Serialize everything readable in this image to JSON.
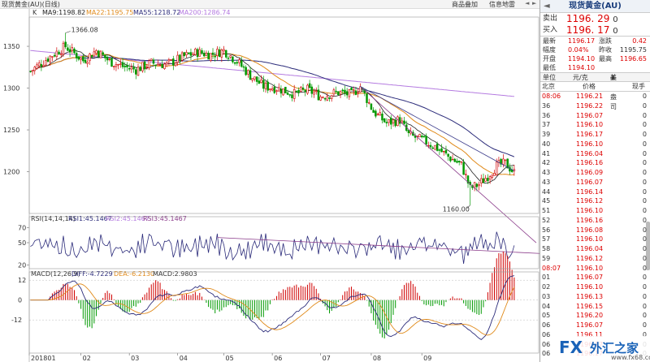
{
  "window": {
    "title": "现货黄金(AU)(日线)",
    "buttons": [
      "商品叠加",
      "信息地雷"
    ],
    "scroll_left": "◄",
    "scroll_right": "►"
  },
  "chart_data": [
    {
      "type": "candlestick",
      "panel": "price",
      "info_label": "K",
      "ma_legend": [
        {
          "name": "MA9:1198.82",
          "color": "#222222"
        },
        {
          "name": "MA22:1195.75",
          "color": "#e08a1a"
        },
        {
          "name": "MA55:1218.72",
          "color": "#2b2b7a"
        },
        {
          "name": "MA200:1286.74",
          "color": "#b47ae0"
        }
      ],
      "ylim": [
        1150,
        1385
      ],
      "yticks": [
        "1350",
        "1300",
        "1250",
        "1200"
      ],
      "ytick_values": [
        1350,
        1300,
        1250,
        1200
      ],
      "xticks": [
        "201801",
        "02",
        "03",
        "04",
        "05",
        "06",
        "07",
        "08",
        "09"
      ],
      "annotations": [
        {
          "text": "1366.08",
          "x_index": 16,
          "value": 1366.08
        },
        {
          "text": "1160.00",
          "x_index": 200,
          "value": 1160.0
        }
      ],
      "up_color": "#d00000",
      "down_color": "#009900",
      "anchors": [
        [
          0,
          1320
        ],
        [
          8,
          1336
        ],
        [
          16,
          1350
        ],
        [
          24,
          1333
        ],
        [
          30,
          1345
        ],
        [
          36,
          1332
        ],
        [
          42,
          1326
        ],
        [
          48,
          1322
        ],
        [
          55,
          1330
        ],
        [
          62,
          1328
        ],
        [
          70,
          1338
        ],
        [
          76,
          1343
        ],
        [
          82,
          1340
        ],
        [
          88,
          1345
        ],
        [
          94,
          1332
        ],
        [
          100,
          1315
        ],
        [
          106,
          1302
        ],
        [
          112,
          1300
        ],
        [
          120,
          1293
        ],
        [
          126,
          1298
        ],
        [
          132,
          1290
        ],
        [
          140,
          1295
        ],
        [
          146,
          1292
        ],
        [
          150,
          1302
        ],
        [
          156,
          1272
        ],
        [
          162,
          1258
        ],
        [
          168,
          1262
        ],
        [
          172,
          1244
        ],
        [
          178,
          1238
        ],
        [
          184,
          1230
        ],
        [
          190,
          1218
        ],
        [
          196,
          1208
        ],
        [
          200,
          1180
        ],
        [
          204,
          1185
        ],
        [
          208,
          1195
        ],
        [
          212,
          1207
        ],
        [
          216,
          1210
        ],
        [
          220,
          1199
        ]
      ],
      "trendlines": [
        {
          "from": [
            150,
            1302
          ],
          "to": [
            230,
            1115
          ],
          "color": "#8a3a8a"
        },
        {
          "from": [
            150,
            1302
          ],
          "to": [
            220,
            1201
          ],
          "color": "#3a3a8a"
        }
      ]
    },
    {
      "type": "line",
      "panel": "RSI",
      "legend": [
        {
          "name": "RSI(14,14,14)",
          "color": "#333333"
        },
        {
          "name": "RSI1:45.1467",
          "color": "#2b2b7a"
        },
        {
          "name": "RSI2:45.1467",
          "color": "#b47ae0"
        },
        {
          "name": "RSI3:45.1467",
          "color": "#8a3a8a"
        }
      ],
      "ylim": [
        15,
        85
      ],
      "yticks": [
        "70",
        "50",
        "20"
      ],
      "ytick_values": [
        70,
        50,
        20
      ],
      "trendline": {
        "from": [
          85,
          57
        ],
        "to": [
          235,
          35
        ],
        "color": "#8a3a8a"
      }
    },
    {
      "type": "bar",
      "panel": "MACD",
      "legend": [
        {
          "name": "MACD(12,26,9)",
          "color": "#333333"
        },
        {
          "name": "DIFF:-4.7229",
          "color": "#2b2b7a"
        },
        {
          "name": "DEA:-6.2130",
          "color": "#e08a1a"
        },
        {
          "name": "MACD:2.9803",
          "color": "#333333"
        }
      ],
      "ylim": [
        -32,
        17
      ],
      "yticks": [
        "12",
        "0",
        "-12"
      ],
      "ytick_values": [
        12,
        0,
        -12
      ]
    }
  ],
  "quote": {
    "title": "现货黄金(AU)",
    "arrow": "◄",
    "sell_label": "卖出",
    "sell_price": "1196. 29",
    "sell_qty": "0",
    "buy_label": "买入",
    "buy_price": "1196. 17",
    "buy_qty": "0",
    "stats": [
      {
        "k1": "最新",
        "v1": "1196.17",
        "k2": "涨跌",
        "v2": "0.42"
      },
      {
        "k1": "幅度",
        "v1": "0.04%",
        "k2": "昨收",
        "v2": "1195.75"
      },
      {
        "k1": "开盘",
        "v1": "1194.10",
        "k2": "最高",
        "v2": "1196.65"
      },
      {
        "k1": "最低",
        "v1": "1194.10",
        "k2": "",
        "v2": ""
      }
    ],
    "unit_label": "单位",
    "unit_value": "元/克",
    "unit_option": "美元/盎司",
    "col_time": "北京",
    "col_price": "价格",
    "col_vol": "现手",
    "ticks": [
      {
        "t": "08:06",
        "p": "1196.21",
        "v": "0"
      },
      {
        "t": "36",
        "p": "1196.22",
        "v": "0"
      },
      {
        "t": "36",
        "p": "1196.07",
        "v": "0"
      },
      {
        "t": "37",
        "p": "1196.10",
        "v": "0"
      },
      {
        "t": "39",
        "p": "1196.17",
        "v": "0"
      },
      {
        "t": "40",
        "p": "1196.10",
        "v": "0"
      },
      {
        "t": "41",
        "p": "1196.04",
        "v": "0"
      },
      {
        "t": "42",
        "p": "1196.16",
        "v": "0"
      },
      {
        "t": "43",
        "p": "1196.09",
        "v": "0"
      },
      {
        "t": "43",
        "p": "1196.07",
        "v": "0"
      },
      {
        "t": "44",
        "p": "1196.14",
        "v": "0"
      },
      {
        "t": "45",
        "p": "1196.12",
        "v": "0"
      },
      {
        "t": "51",
        "p": "1196.10",
        "v": "0"
      },
      {
        "t": "52",
        "p": "1196.16",
        "v": "0"
      },
      {
        "t": "56",
        "p": "1196.08",
        "v": "0"
      },
      {
        "t": "57",
        "p": "1196.10",
        "v": "0"
      },
      {
        "t": "58",
        "p": "1196.04",
        "v": "0"
      },
      {
        "t": "59",
        "p": "1196.12",
        "v": "0"
      },
      {
        "t": "08:07",
        "p": "1196.10",
        "v": "0"
      },
      {
        "t": "01",
        "p": "1196.07",
        "v": "0"
      },
      {
        "t": "02",
        "p": "1196.10",
        "v": "0"
      },
      {
        "t": "03",
        "p": "1196.13",
        "v": "0"
      },
      {
        "t": "04",
        "p": "1196.15",
        "v": "0"
      },
      {
        "t": "05",
        "p": "1196.20",
        "v": "0"
      },
      {
        "t": "06",
        "p": "1196.07",
        "v": "0"
      },
      {
        "t": "06",
        "p": "1196.11",
        "v": "0"
      },
      {
        "t": "06",
        "p": "1196.17",
        "v": "0"
      },
      {
        "t": "06",
        "p": "1196.17",
        "v": "0"
      }
    ]
  },
  "watermark": {
    "fx": "FX",
    "cn": "外汇之家",
    "url": "www.fx68.com"
  }
}
